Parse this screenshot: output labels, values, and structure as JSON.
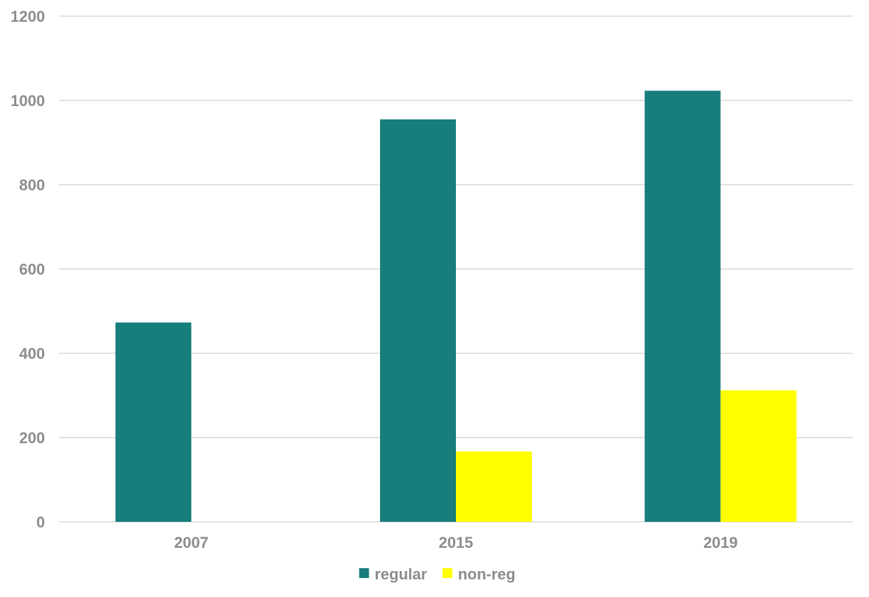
{
  "chart_data": {
    "type": "bar",
    "categories": [
      "2007",
      "2015",
      "2019"
    ],
    "series": [
      {
        "name": "regular",
        "values": [
          473,
          955,
          1023
        ],
        "color": "#177e7c"
      },
      {
        "name": "non-reg",
        "values": [
          0,
          167,
          312
        ],
        "color": "#ffff00"
      }
    ],
    "ylim": [
      0,
      1200
    ],
    "yticks": [
      0,
      200,
      400,
      600,
      800,
      1000,
      1200
    ],
    "grid": true,
    "legend_position": "bottom",
    "title": "",
    "xlabel": "",
    "ylabel": ""
  }
}
